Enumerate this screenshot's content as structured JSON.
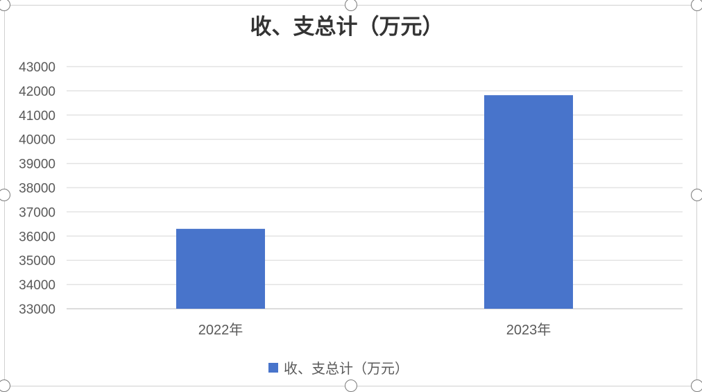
{
  "chart_data": {
    "type": "bar",
    "title": "收、支总计（万元）",
    "categories": [
      "2022年",
      "2023年"
    ],
    "series": [
      {
        "name": "收、支总计（万元）",
        "values": [
          36300,
          41820
        ],
        "color": "#4874CB"
      }
    ],
    "ylim": [
      33000,
      43000
    ],
    "yticks": [
      33000,
      34000,
      35000,
      36000,
      37000,
      38000,
      39000,
      40000,
      41000,
      42000,
      43000
    ],
    "grid": true,
    "legend": "bottom",
    "xlabel": "",
    "ylabel": ""
  }
}
